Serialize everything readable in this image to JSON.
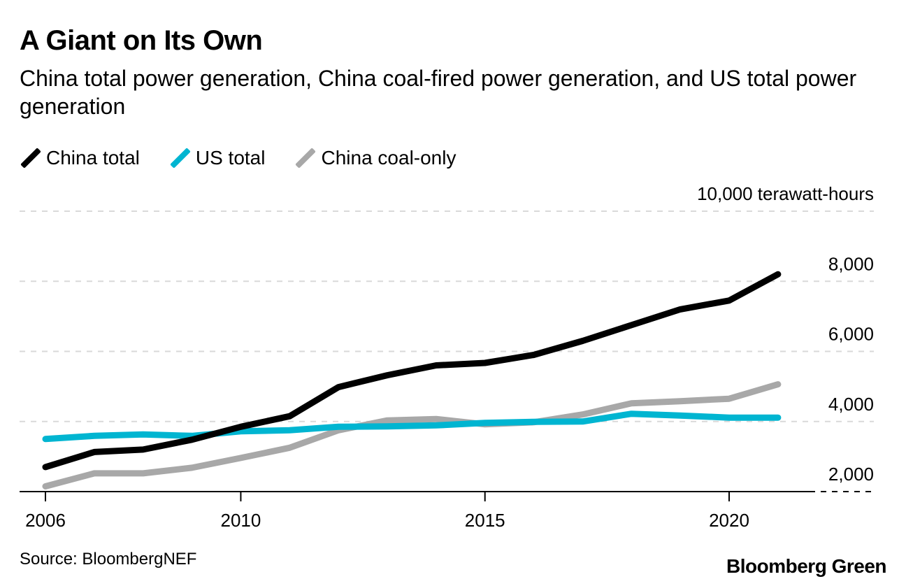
{
  "header": {
    "title": "A Giant on Its Own",
    "subtitle": "China total power generation, China coal-fired power generation, and US total power generation"
  },
  "legend": [
    {
      "label": "China total",
      "color": "#000000"
    },
    {
      "label": "US total",
      "color": "#00b5d1"
    },
    {
      "label": "China coal-only",
      "color": "#a8a8a8"
    }
  ],
  "footer": {
    "source": "Source: BloombergNEF",
    "brand": "Bloomberg Green"
  },
  "chart_data": {
    "type": "line",
    "title": "A Giant on Its Own",
    "subtitle": "China total power generation, China coal-fired power generation, and US total power generation",
    "xlabel": "",
    "ylabel": "10,000 terawatt-hours",
    "unit_label": "10,000 terawatt-hours",
    "x": [
      2006,
      2007,
      2008,
      2009,
      2010,
      2011,
      2012,
      2013,
      2014,
      2015,
      2016,
      2017,
      2018,
      2019,
      2020,
      2021
    ],
    "xlim": [
      2005.5,
      2022.5
    ],
    "ylim": [
      2000,
      10000
    ],
    "x_ticks": [
      2006,
      2010,
      2015,
      2020
    ],
    "x_tick_labels": [
      "2006",
      "2010",
      "2015",
      "2020"
    ],
    "y_ticks": [
      2000,
      4000,
      6000,
      8000,
      10000
    ],
    "y_tick_labels": [
      "2,000",
      "4,000",
      "6,000",
      "8,000",
      "10,000 terawatt-hours"
    ],
    "grid": true,
    "legend_position": "top-left",
    "series": [
      {
        "name": "China total",
        "color": "#000000",
        "values": [
          2700,
          3130,
          3200,
          3480,
          3850,
          4150,
          4980,
          5320,
          5600,
          5670,
          5900,
          6300,
          6750,
          7200,
          7450,
          8200
        ]
      },
      {
        "name": "US total",
        "color": "#00b5d1",
        "values": [
          3500,
          3590,
          3630,
          3590,
          3720,
          3750,
          3850,
          3860,
          3890,
          3960,
          3990,
          4000,
          4220,
          4170,
          4110,
          4110
        ]
      },
      {
        "name": "China coal-only",
        "color": "#a8a8a8",
        "values": [
          2150,
          2520,
          2520,
          2680,
          2960,
          3250,
          3750,
          4030,
          4070,
          3920,
          3980,
          4200,
          4520,
          4580,
          4650,
          5060
        ]
      }
    ]
  }
}
